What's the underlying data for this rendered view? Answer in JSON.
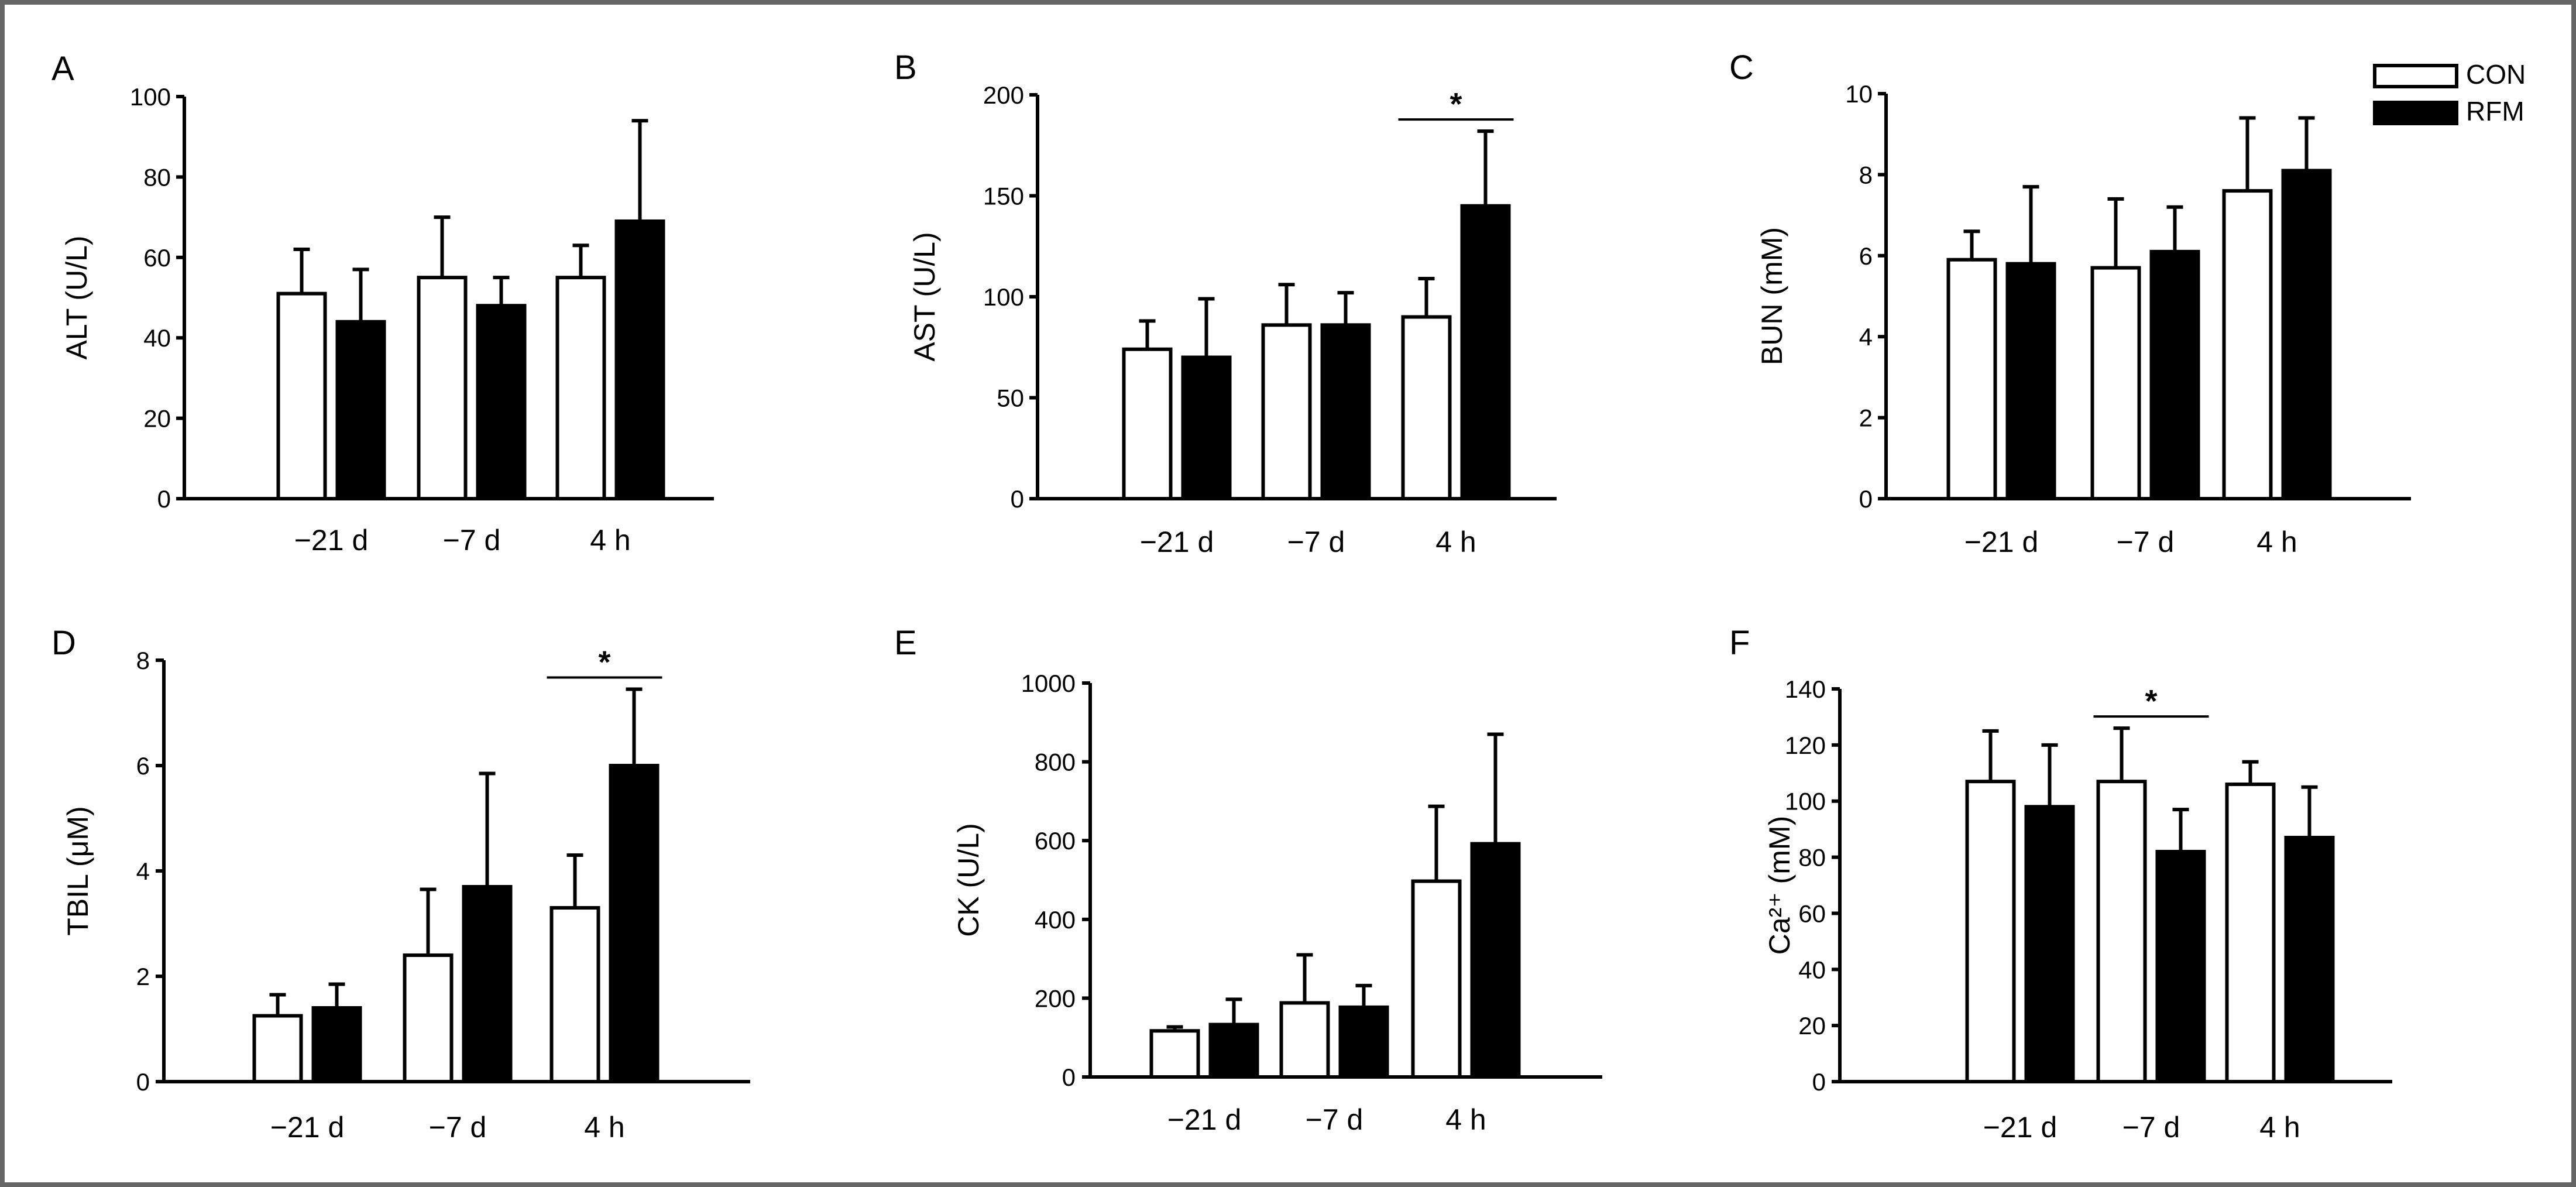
{
  "legend": {
    "items": [
      {
        "name": "CON",
        "fill": "#ffffff"
      },
      {
        "name": "RFM",
        "fill": "#000000"
      }
    ]
  },
  "chart_data": [
    {
      "type": "bar",
      "panel": "A",
      "ylabel": "ALT (U/L)",
      "categories": [
        "−21 d",
        "−7 d",
        "4 h"
      ],
      "ylim": [
        0,
        100
      ],
      "yticks": [
        0,
        20,
        40,
        60,
        80,
        100
      ],
      "series": [
        {
          "name": "CON",
          "values": [
            51,
            55,
            55
          ],
          "errors": [
            11,
            15,
            8
          ]
        },
        {
          "name": "RFM",
          "values": [
            44,
            48,
            69
          ],
          "errors": [
            13,
            7,
            25
          ]
        }
      ],
      "significance": []
    },
    {
      "type": "bar",
      "panel": "B",
      "ylabel": "AST (U/L)",
      "categories": [
        "−21 d",
        "−7 d",
        "4 h"
      ],
      "ylim": [
        0,
        200
      ],
      "yticks": [
        0,
        50,
        100,
        150,
        200
      ],
      "series": [
        {
          "name": "CON",
          "values": [
            74,
            86,
            90
          ],
          "errors": [
            14,
            20,
            19
          ]
        },
        {
          "name": "RFM",
          "values": [
            70,
            86,
            145
          ],
          "errors": [
            29,
            16,
            37
          ]
        }
      ],
      "significance": [
        {
          "category_index": 2,
          "label": "*"
        }
      ]
    },
    {
      "type": "bar",
      "panel": "C",
      "ylabel": "BUN (mM)",
      "categories": [
        "−21 d",
        "−7 d",
        "4 h"
      ],
      "ylim": [
        0,
        10
      ],
      "yticks": [
        0,
        2,
        4,
        6,
        8,
        10
      ],
      "series": [
        {
          "name": "CON",
          "values": [
            5.9,
            5.7,
            7.6
          ],
          "errors": [
            0.7,
            1.7,
            1.8
          ]
        },
        {
          "name": "RFM",
          "values": [
            5.8,
            6.1,
            8.1
          ],
          "errors": [
            1.9,
            1.1,
            1.3
          ]
        }
      ],
      "significance": []
    },
    {
      "type": "bar",
      "panel": "D",
      "ylabel": "TBIL (μM)",
      "categories": [
        "−21 d",
        "−7 d",
        "4 h"
      ],
      "ylim": [
        0,
        8
      ],
      "yticks": [
        0,
        2,
        4,
        6,
        8
      ],
      "series": [
        {
          "name": "CON",
          "values": [
            1.25,
            2.4,
            3.3
          ],
          "errors": [
            0.4,
            1.25,
            1.0
          ]
        },
        {
          "name": "RFM",
          "values": [
            1.4,
            3.7,
            6.0
          ],
          "errors": [
            0.45,
            2.15,
            1.45
          ]
        }
      ],
      "significance": [
        {
          "category_index": 2,
          "label": "*"
        }
      ]
    },
    {
      "type": "bar",
      "panel": "E",
      "ylabel": "CK (U/L)",
      "categories": [
        "−21 d",
        "−7 d",
        "4 h"
      ],
      "ylim": [
        0,
        1000
      ],
      "yticks": [
        0,
        200,
        400,
        600,
        800,
        1000
      ],
      "series": [
        {
          "name": "CON",
          "values": [
            117,
            188,
            497
          ],
          "errors": [
            10,
            122,
            190
          ]
        },
        {
          "name": "RFM",
          "values": [
            133,
            177,
            592
          ],
          "errors": [
            64,
            55,
            278
          ]
        }
      ],
      "significance": []
    },
    {
      "type": "bar",
      "panel": "F",
      "ylabel": "Ca²⁺ (mM)",
      "categories": [
        "−21 d",
        "−7 d",
        "4 h"
      ],
      "ylim": [
        0,
        140
      ],
      "yticks": [
        0,
        20,
        40,
        60,
        80,
        100,
        120,
        140
      ],
      "series": [
        {
          "name": "CON",
          "values": [
            107,
            107,
            106
          ],
          "errors": [
            18,
            19,
            8
          ]
        },
        {
          "name": "RFM",
          "values": [
            98,
            82,
            87
          ],
          "errors": [
            22,
            15,
            18
          ]
        }
      ],
      "significance": [
        {
          "category_index": 1,
          "label": "*"
        }
      ]
    }
  ]
}
